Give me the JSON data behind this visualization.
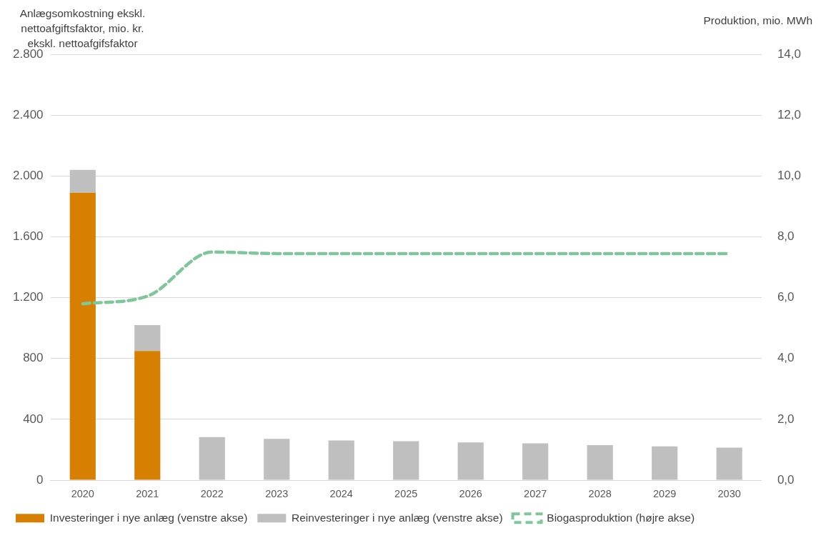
{
  "chart_data": {
    "type": "bar",
    "stacked": true,
    "ylabel": "Anlægsomkostning ekskl. nettoafgiftsfaktor, mio. kr. ekskl. nettoafgifsfaktor",
    "y2label": "Produktion, mio. MWh",
    "categories": [
      "2020",
      "2021",
      "2022",
      "2023",
      "2024",
      "2025",
      "2026",
      "2027",
      "2028",
      "2029",
      "2030"
    ],
    "series": [
      {
        "name": "Investeringer i nye anlæg (venstre akse)",
        "color": "#d77f00",
        "values": [
          1890,
          850,
          null,
          null,
          null,
          null,
          null,
          null,
          null,
          null,
          null
        ]
      },
      {
        "name": "Reinvesteringer i nye anlæg (venstre akse)",
        "color": "#bfbfbf",
        "values": [
          150,
          170,
          284,
          272,
          261,
          256,
          248,
          242,
          231,
          222,
          214
        ]
      },
      {
        "name": "Biogasproduktion (højre akse)",
        "type": "line",
        "axis": "y2",
        "color": "#7fc79a",
        "line_style": "dashed",
        "marker": "none",
        "values": [
          5.8,
          6.05,
          7.5,
          7.45,
          7.45,
          7.45,
          7.45,
          7.45,
          7.45,
          7.45,
          7.45
        ]
      }
    ],
    "ylim": [
      0,
      2800
    ],
    "yticks": [
      {
        "value": 0,
        "label": "0"
      },
      {
        "value": 400,
        "label": "400"
      },
      {
        "value": 800,
        "label": "800"
      },
      {
        "value": 1200,
        "label": "1.200"
      },
      {
        "value": 1600,
        "label": "1.600"
      },
      {
        "value": 2000,
        "label": "2.000"
      },
      {
        "value": 2400,
        "label": "2.400"
      },
      {
        "value": 2800,
        "label": "2.800"
      }
    ],
    "y2lim": [
      0,
      14
    ],
    "y2ticks": [
      {
        "value": 0,
        "label": "0,0"
      },
      {
        "value": 2,
        "label": "2,0"
      },
      {
        "value": 4,
        "label": "4,0"
      },
      {
        "value": 6,
        "label": "6,0"
      },
      {
        "value": 8,
        "label": "8,0"
      },
      {
        "value": 10,
        "label": "10,0"
      },
      {
        "value": 12,
        "label": "12,0"
      },
      {
        "value": 14,
        "label": "14,0"
      }
    ],
    "grid": "y",
    "legend": "bottom"
  }
}
